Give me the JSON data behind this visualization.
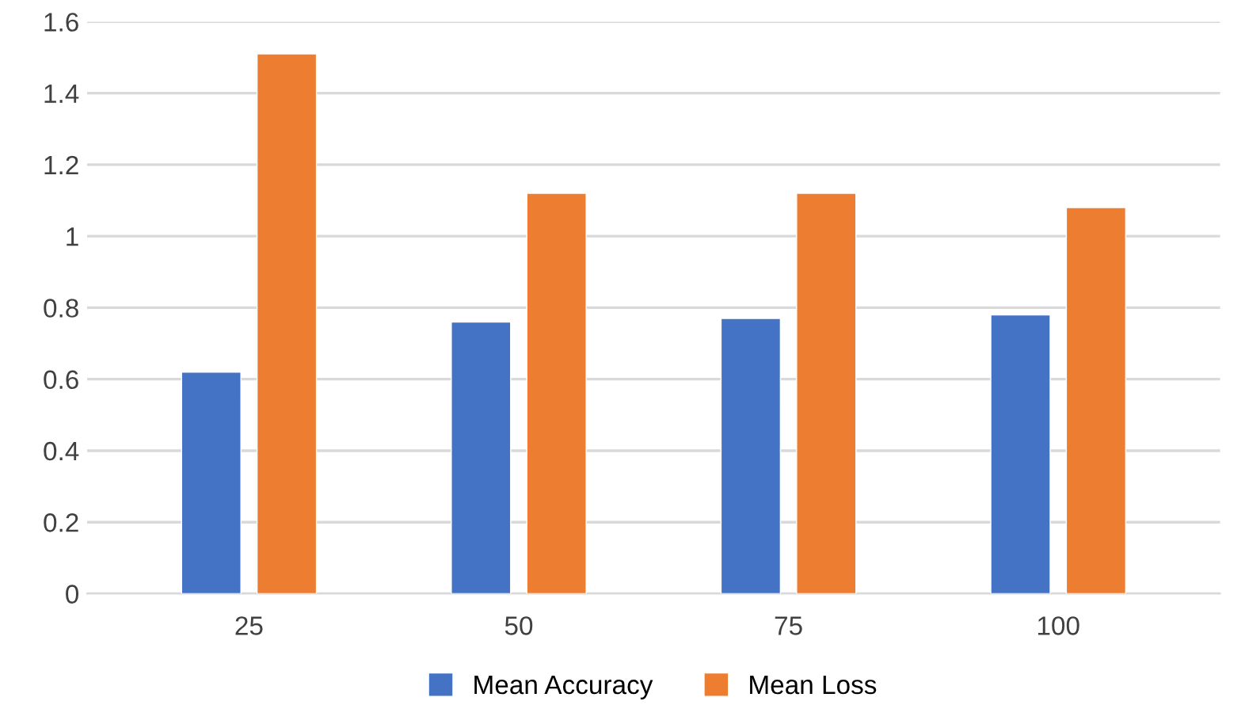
{
  "chart_data": {
    "type": "bar",
    "categories": [
      "25",
      "50",
      "75",
      "100"
    ],
    "series": [
      {
        "name": "Mean Accuracy",
        "color": "#4472c4",
        "values": [
          0.62,
          0.76,
          0.77,
          0.78
        ]
      },
      {
        "name": "Mean Loss",
        "color": "#ed7d31",
        "values": [
          1.51,
          1.12,
          1.12,
          1.08
        ]
      }
    ],
    "ylim": [
      0,
      1.6
    ],
    "yticks": [
      0,
      {
        "value": 0.2,
        "label": "0.2"
      },
      {
        "value": 0.4,
        "label": "0.4"
      },
      {
        "value": 0.6,
        "label": "0.6"
      },
      {
        "value": 0.8,
        "label": "0.8"
      },
      1,
      {
        "value": 1.2,
        "label": "1.2"
      },
      {
        "value": 1.4,
        "label": "1.4"
      },
      {
        "value": 1.6,
        "label": "1.6"
      }
    ],
    "grid": "y",
    "legend": "bottom"
  }
}
